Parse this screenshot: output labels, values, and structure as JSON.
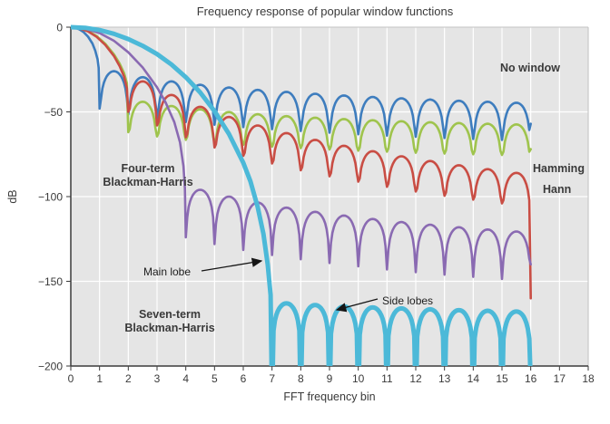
{
  "chart_data": {
    "type": "line",
    "title": "Frequency response of popular window functions",
    "xlabel": "FFT frequency bin",
    "ylabel": "dB",
    "xlim": [
      0,
      18
    ],
    "ylim": [
      -200,
      0
    ],
    "x_ticks": [
      0,
      1,
      2,
      3,
      4,
      5,
      6,
      7,
      8,
      9,
      10,
      11,
      12,
      13,
      14,
      15,
      16,
      17,
      18
    ],
    "y_ticks": [
      0,
      -50,
      -100,
      -150,
      -200
    ],
    "y_tick_labels": [
      "0",
      "−50",
      "−100",
      "−150",
      "−200"
    ],
    "grid": true,
    "plot_background": "#e5e5e5",
    "grid_color": "#ffffff",
    "series": [
      {
        "name": "No window",
        "label": "No window",
        "color": "#3e7dbe",
        "width": 2.6,
        "main_lobe": {
          "null_at": 1,
          "samples": [
            [
              0,
              0
            ],
            [
              0.15,
              -0.3
            ],
            [
              0.3,
              -1.3
            ],
            [
              0.45,
              -3
            ],
            [
              0.6,
              -5.6
            ],
            [
              0.75,
              -9.6
            ],
            [
              0.85,
              -13.8
            ],
            [
              0.93,
              -19
            ],
            [
              0.97,
              -24
            ]
          ]
        },
        "side_lobes": {
          "peaks": [
            -26,
            -29.5,
            -32,
            -34,
            -35.6,
            -37,
            -38.2,
            -39.3,
            -40.3,
            -41.2,
            -42,
            -42.7,
            -43.4,
            -44,
            -44.6
          ]
        },
        "null_drop": 22,
        "end_dB": -57
      },
      {
        "name": "Hamming",
        "label": "Hamming",
        "color": "#9fc44d",
        "width": 2.6,
        "main_lobe": {
          "null_at": 2,
          "samples": [
            [
              0,
              0
            ],
            [
              0.3,
              -0.6
            ],
            [
              0.6,
              -2.3
            ],
            [
              0.9,
              -5.3
            ],
            [
              1.2,
              -9.8
            ],
            [
              1.5,
              -16
            ],
            [
              1.7,
              -21.5
            ],
            [
              1.85,
              -27
            ],
            [
              1.95,
              -33
            ]
          ]
        },
        "side_lobes": {
          "peaks": [
            -44,
            -46.5,
            -48.5,
            -50.1,
            -51.4,
            -52.5,
            -53.4,
            -54.2,
            -54.9,
            -55.5,
            -56.1,
            -56.6,
            -57,
            -57.4
          ]
        },
        "null_drop": 18,
        "end_dB": -72
      },
      {
        "name": "Hann",
        "label": "Hann",
        "color": "#c94d44",
        "width": 2.6,
        "main_lobe": {
          "null_at": 2,
          "samples": [
            [
              0,
              0
            ],
            [
              0.3,
              -0.65
            ],
            [
              0.6,
              -2.5
            ],
            [
              0.9,
              -5.7
            ],
            [
              1.2,
              -10.5
            ],
            [
              1.5,
              -17
            ],
            [
              1.7,
              -23
            ],
            [
              1.85,
              -29
            ],
            [
              1.95,
              -36
            ]
          ]
        },
        "side_lobes": {
          "peaks": [
            -32,
            -40,
            -47,
            -53,
            -58,
            -62.5,
            -66.5,
            -70,
            -73.2,
            -76.2,
            -79,
            -81.5,
            -83.8,
            -86
          ]
        },
        "null_drop": 18,
        "end_dB": -160
      },
      {
        "name": "Four-term Blackman-Harris",
        "label_lines": [
          "Four-term",
          "Blackman-Harris"
        ],
        "color": "#8a6ab2",
        "width": 2.6,
        "main_lobe": {
          "null_at": 4,
          "samples": [
            [
              0,
              0
            ],
            [
              0.5,
              -0.9
            ],
            [
              1,
              -3.5
            ],
            [
              1.5,
              -8
            ],
            [
              2,
              -14.8
            ],
            [
              2.5,
              -23.8
            ],
            [
              3,
              -35.5
            ],
            [
              3.3,
              -44.5
            ],
            [
              3.6,
              -56
            ],
            [
              3.8,
              -68
            ],
            [
              3.92,
              -82
            ],
            [
              3.97,
              -95
            ]
          ]
        },
        "side_lobes": {
          "peaks": [
            -96,
            -100,
            -103.5,
            -106.5,
            -109,
            -111.2,
            -113.2,
            -115,
            -116.6,
            -118.1,
            -119.4,
            -120.6
          ]
        },
        "null_drop": 28,
        "end_dB": -140
      },
      {
        "name": "Seven-term Blackman-Harris",
        "label_lines": [
          "Seven-term",
          "Blackman-Harris"
        ],
        "color": "#4cb9d8",
        "width": 5,
        "main_lobe": {
          "null_at": 7,
          "samples": [
            [
              0,
              0
            ],
            [
              0.5,
              -0.4
            ],
            [
              1,
              -1.7
            ],
            [
              1.5,
              -3.9
            ],
            [
              2,
              -7
            ],
            [
              2.5,
              -11
            ],
            [
              3,
              -15.9
            ],
            [
              3.5,
              -22
            ],
            [
              4,
              -29.5
            ],
            [
              4.5,
              -38.5
            ],
            [
              5,
              -49.5
            ],
            [
              5.5,
              -63
            ],
            [
              6,
              -80
            ],
            [
              6.25,
              -91
            ],
            [
              6.5,
              -106
            ],
            [
              6.7,
              -122
            ],
            [
              6.85,
              -140
            ],
            [
              6.95,
              -158
            ]
          ]
        },
        "side_lobes": {
          "peaks": [
            -163,
            -164,
            -164.8,
            -165.4,
            -166,
            -166.5,
            -167,
            -167.4,
            -167.8
          ]
        },
        "null_drop": 60,
        "end_dB": -210
      }
    ],
    "annotations": [
      {
        "text": "Main lobe"
      },
      {
        "text": "Side lobes"
      }
    ]
  }
}
